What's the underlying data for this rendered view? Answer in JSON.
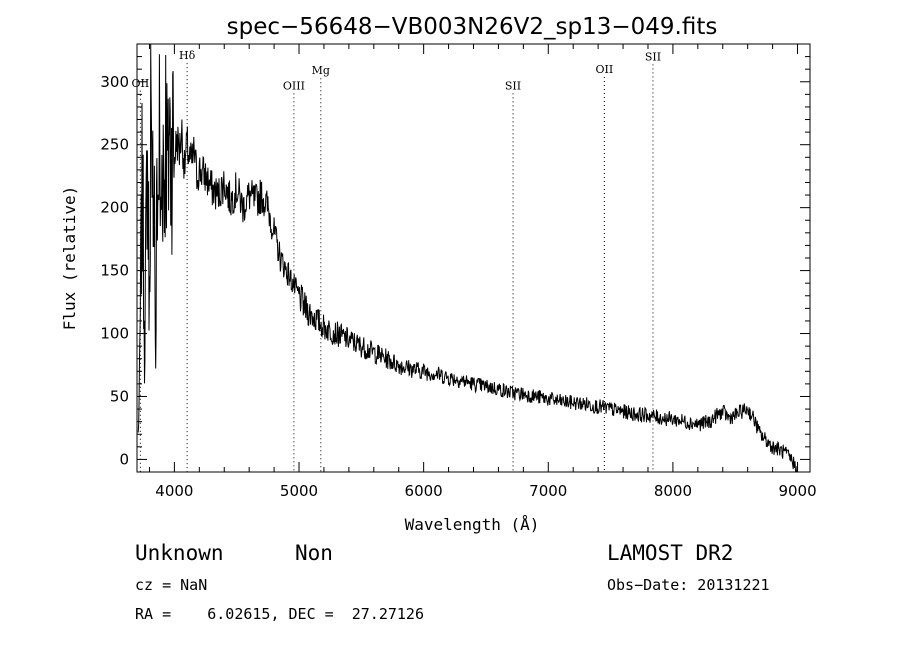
{
  "chart_data": {
    "type": "line",
    "title": "spec−56648−VB003N26V2_sp13−049.fits",
    "xlabel": "Wavelength (Å)",
    "ylabel": "Flux (relative)",
    "xlim": [
      3700,
      9100
    ],
    "ylim": [
      -10,
      330
    ],
    "xticks": [
      4000,
      5000,
      6000,
      7000,
      8000,
      9000
    ],
    "yticks": [
      0,
      50,
      100,
      150,
      200,
      250,
      300
    ],
    "grid": false,
    "line_color": "#000000",
    "lines": [
      {
        "label": "OII",
        "x": 3727,
        "label_y": 296
      },
      {
        "label": "Hδ",
        "x": 4102,
        "label_y": 318
      },
      {
        "label": "OIII",
        "x": 4959,
        "label_y": 294
      },
      {
        "label": "Mg",
        "x": 5175,
        "label_y": 306
      },
      {
        "label": "SII",
        "x": 6717,
        "label_y": 294
      },
      {
        "label": "OII",
        "x": 7450,
        "label_y": 307
      },
      {
        "label": "SII",
        "x": 7840,
        "label_y": 317
      }
    ],
    "series": [
      {
        "x": [
          3710,
          3720,
          3730,
          3740,
          3750,
          3760,
          3770,
          3780,
          3790,
          3800,
          3810,
          3820,
          3830,
          3840,
          3850,
          3860,
          3870,
          3880,
          3890,
          3900,
          3910,
          3920,
          3930,
          3940,
          3950,
          3960,
          3970,
          3980,
          3990,
          4000,
          4020,
          4040,
          4060,
          4080,
          4100,
          4120,
          4140,
          4160,
          4180,
          4200,
          4250,
          4300,
          4350,
          4400,
          4450,
          4500,
          4550,
          4600,
          4650,
          4700,
          4750,
          4800,
          4850,
          4900,
          4950,
          5000,
          5050,
          5100,
          5150,
          5200,
          5300,
          5400,
          5500,
          5600,
          5700,
          5800,
          5900,
          6000,
          6100,
          6200,
          6300,
          6400,
          6500,
          6600,
          6700,
          6800,
          6900,
          7000,
          7100,
          7200,
          7300,
          7400,
          7500,
          7600,
          7700,
          7800,
          7900,
          8000,
          8100,
          8200,
          8300,
          8350,
          8400,
          8450,
          8500,
          8550,
          8600,
          8650,
          8700,
          8750,
          8800,
          8850,
          8900,
          8950,
          8980,
          9000
        ],
        "y": [
          20,
          60,
          140,
          210,
          180,
          90,
          150,
          240,
          200,
          120,
          290,
          170,
          250,
          210,
          60,
          230,
          200,
          260,
          180,
          230,
          250,
          210,
          270,
          240,
          220,
          280,
          230,
          250,
          260,
          240,
          255,
          245,
          260,
          230,
          250,
          240,
          235,
          245,
          225,
          230,
          225,
          215,
          210,
          220,
          205,
          215,
          200,
          210,
          205,
          210,
          200,
          180,
          160,
          150,
          140,
          130,
          120,
          115,
          110,
          105,
          100,
          95,
          90,
          85,
          80,
          75,
          72,
          70,
          68,
          65,
          63,
          60,
          58,
          56,
          53,
          52,
          50,
          48,
          46,
          45,
          44,
          42,
          40,
          38,
          36,
          35,
          33,
          32,
          30,
          28,
          30,
          35,
          38,
          33,
          35,
          38,
          40,
          32,
          20,
          15,
          10,
          8,
          5,
          0,
          -5,
          -8
        ]
      }
    ]
  },
  "info": {
    "class_label": "Unknown",
    "subclass_label": "Non",
    "survey_label": "LAMOST DR2",
    "cz_text": "cz = NaN",
    "obs_date_text": "Obs−Date: 20131221",
    "radec_text": "RA =    6.02615, DEC =  27.27126"
  }
}
